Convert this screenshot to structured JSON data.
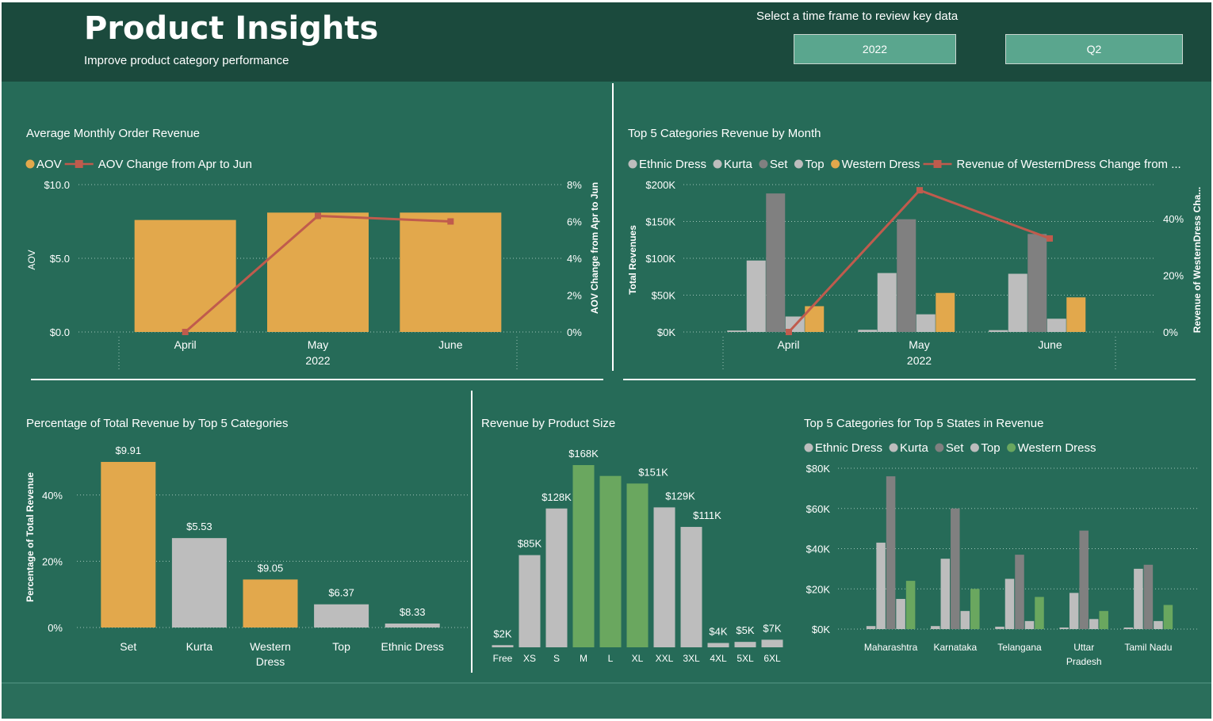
{
  "header": {
    "title": "Product Insights",
    "subtitle": "Improve product category performance",
    "timeframe_label": "Select a time frame to review key data",
    "year_value": "2022",
    "quarter_value": "Q2"
  },
  "colors": {
    "background": "#266b58",
    "header": "#1b4a3d",
    "gold": "#e2a84c",
    "light_gray": "#bdbdbd",
    "dark_gray": "#808080",
    "green": "#6aa75f",
    "line": "#c05b4d"
  },
  "chart_data": [
    {
      "id": "aov",
      "type": "bar",
      "title": "Average Monthly Order Revenue",
      "categories": [
        "April",
        "May",
        "June"
      ],
      "x_group_label": "2022",
      "ylabel": "AOV",
      "y2label": "AOV Change from Apr to Jun",
      "ylim": [
        0,
        10
      ],
      "y2lim": [
        0,
        8
      ],
      "y_ticks": [
        "$0.0",
        "$5.0",
        "$10.0"
      ],
      "y2_ticks": [
        "0%",
        "2%",
        "4%",
        "6%",
        "8%"
      ],
      "series": [
        {
          "name": "AOV",
          "kind": "bar",
          "values": [
            7.6,
            8.1,
            8.1
          ]
        },
        {
          "name": "AOV Change from Apr to Jun",
          "kind": "line",
          "values": [
            0,
            6.3,
            6.0
          ]
        }
      ],
      "legend": "top-left"
    },
    {
      "id": "top5month",
      "type": "bar",
      "title": "Top 5 Categories Revenue by Month",
      "categories": [
        "April",
        "May",
        "June"
      ],
      "x_group_label": "2022",
      "ylabel": "Total Revenues",
      "y2label": "Revenue of WesternDress Cha...",
      "ylim": [
        0,
        200000
      ],
      "y2lim": [
        0,
        52
      ],
      "y_ticks": [
        "$0K",
        "$50K",
        "$100K",
        "$150K",
        "$200K"
      ],
      "y2_ticks": [
        "0%",
        "20%",
        "40%"
      ],
      "series": [
        {
          "name": "Ethnic Dress",
          "kind": "bar",
          "values": [
            2000,
            3000,
            2500
          ]
        },
        {
          "name": "Kurta",
          "kind": "bar",
          "values": [
            97000,
            80000,
            79000
          ]
        },
        {
          "name": "Set",
          "kind": "bar",
          "values": [
            188000,
            153000,
            133000
          ]
        },
        {
          "name": "Top",
          "kind": "bar",
          "values": [
            21000,
            24000,
            18000
          ]
        },
        {
          "name": "Western Dress",
          "kind": "bar",
          "values": [
            35000,
            53000,
            47000
          ]
        },
        {
          "name": "Revenue of WesternDress Change from ...",
          "kind": "line",
          "values": [
            0,
            50,
            33
          ]
        }
      ],
      "legend": "top-left"
    },
    {
      "id": "pct",
      "type": "bar",
      "title": "Percentage of Total Revenue by Top 5 Categories",
      "categories": [
        "Set",
        "Kurta",
        "Western Dress",
        "Top",
        "Ethnic Dress"
      ],
      "ylabel": "Percentage of Total Revenue",
      "ylim": [
        0,
        50
      ],
      "y_ticks": [
        "0%",
        "20%",
        "40%"
      ],
      "values": [
        50,
        27,
        14.5,
        7,
        1.2
      ],
      "data_labels": [
        "$9.91",
        "$5.53",
        "$9.05",
        "$6.37",
        "$8.33"
      ],
      "highlight": [
        true,
        false,
        true,
        false,
        false
      ]
    },
    {
      "id": "size",
      "type": "bar",
      "title": "Revenue by Product Size",
      "categories": [
        "Free",
        "XS",
        "S",
        "M",
        "L",
        "XL",
        "XXL",
        "3XL",
        "4XL",
        "5XL",
        "6XL"
      ],
      "values": [
        2,
        85,
        128,
        168,
        158,
        151,
        129,
        111,
        4,
        5,
        7
      ],
      "data_labels": [
        "$2K",
        "$85K",
        "$128K",
        "$168K",
        "",
        "$151K",
        "$129K",
        "$111K",
        "$4K",
        "$5K",
        "$7K"
      ],
      "highlight": [
        false,
        false,
        false,
        true,
        true,
        true,
        false,
        false,
        false,
        false,
        false
      ]
    },
    {
      "id": "states",
      "type": "bar",
      "title": "Top 5 Categories for Top 5 States in Revenue",
      "categories": [
        "Maharashtra",
        "Karnataka",
        "Telangana",
        "Uttar Pradesh",
        "Tamil Nadu"
      ],
      "category_lines": [
        [
          "Maharashtra"
        ],
        [
          "Karnataka"
        ],
        [
          "Telangana"
        ],
        [
          "Uttar",
          "Pradesh"
        ],
        [
          "Tamil Nadu"
        ]
      ],
      "ylim": [
        0,
        80000
      ],
      "y_ticks": [
        "$0K",
        "$20K",
        "$40K",
        "$60K",
        "$80K"
      ],
      "series": [
        {
          "name": "Ethnic Dress",
          "values": [
            1500,
            1500,
            1200,
            800,
            800
          ]
        },
        {
          "name": "Kurta",
          "values": [
            43000,
            35000,
            25000,
            18000,
            30000
          ]
        },
        {
          "name": "Set",
          "values": [
            76000,
            60000,
            37000,
            49000,
            32000
          ]
        },
        {
          "name": "Top",
          "values": [
            15000,
            9000,
            4000,
            5000,
            4000
          ]
        },
        {
          "name": "Western Dress",
          "values": [
            24000,
            20000,
            16000,
            9000,
            12000
          ]
        }
      ],
      "legend": "top-left"
    }
  ]
}
